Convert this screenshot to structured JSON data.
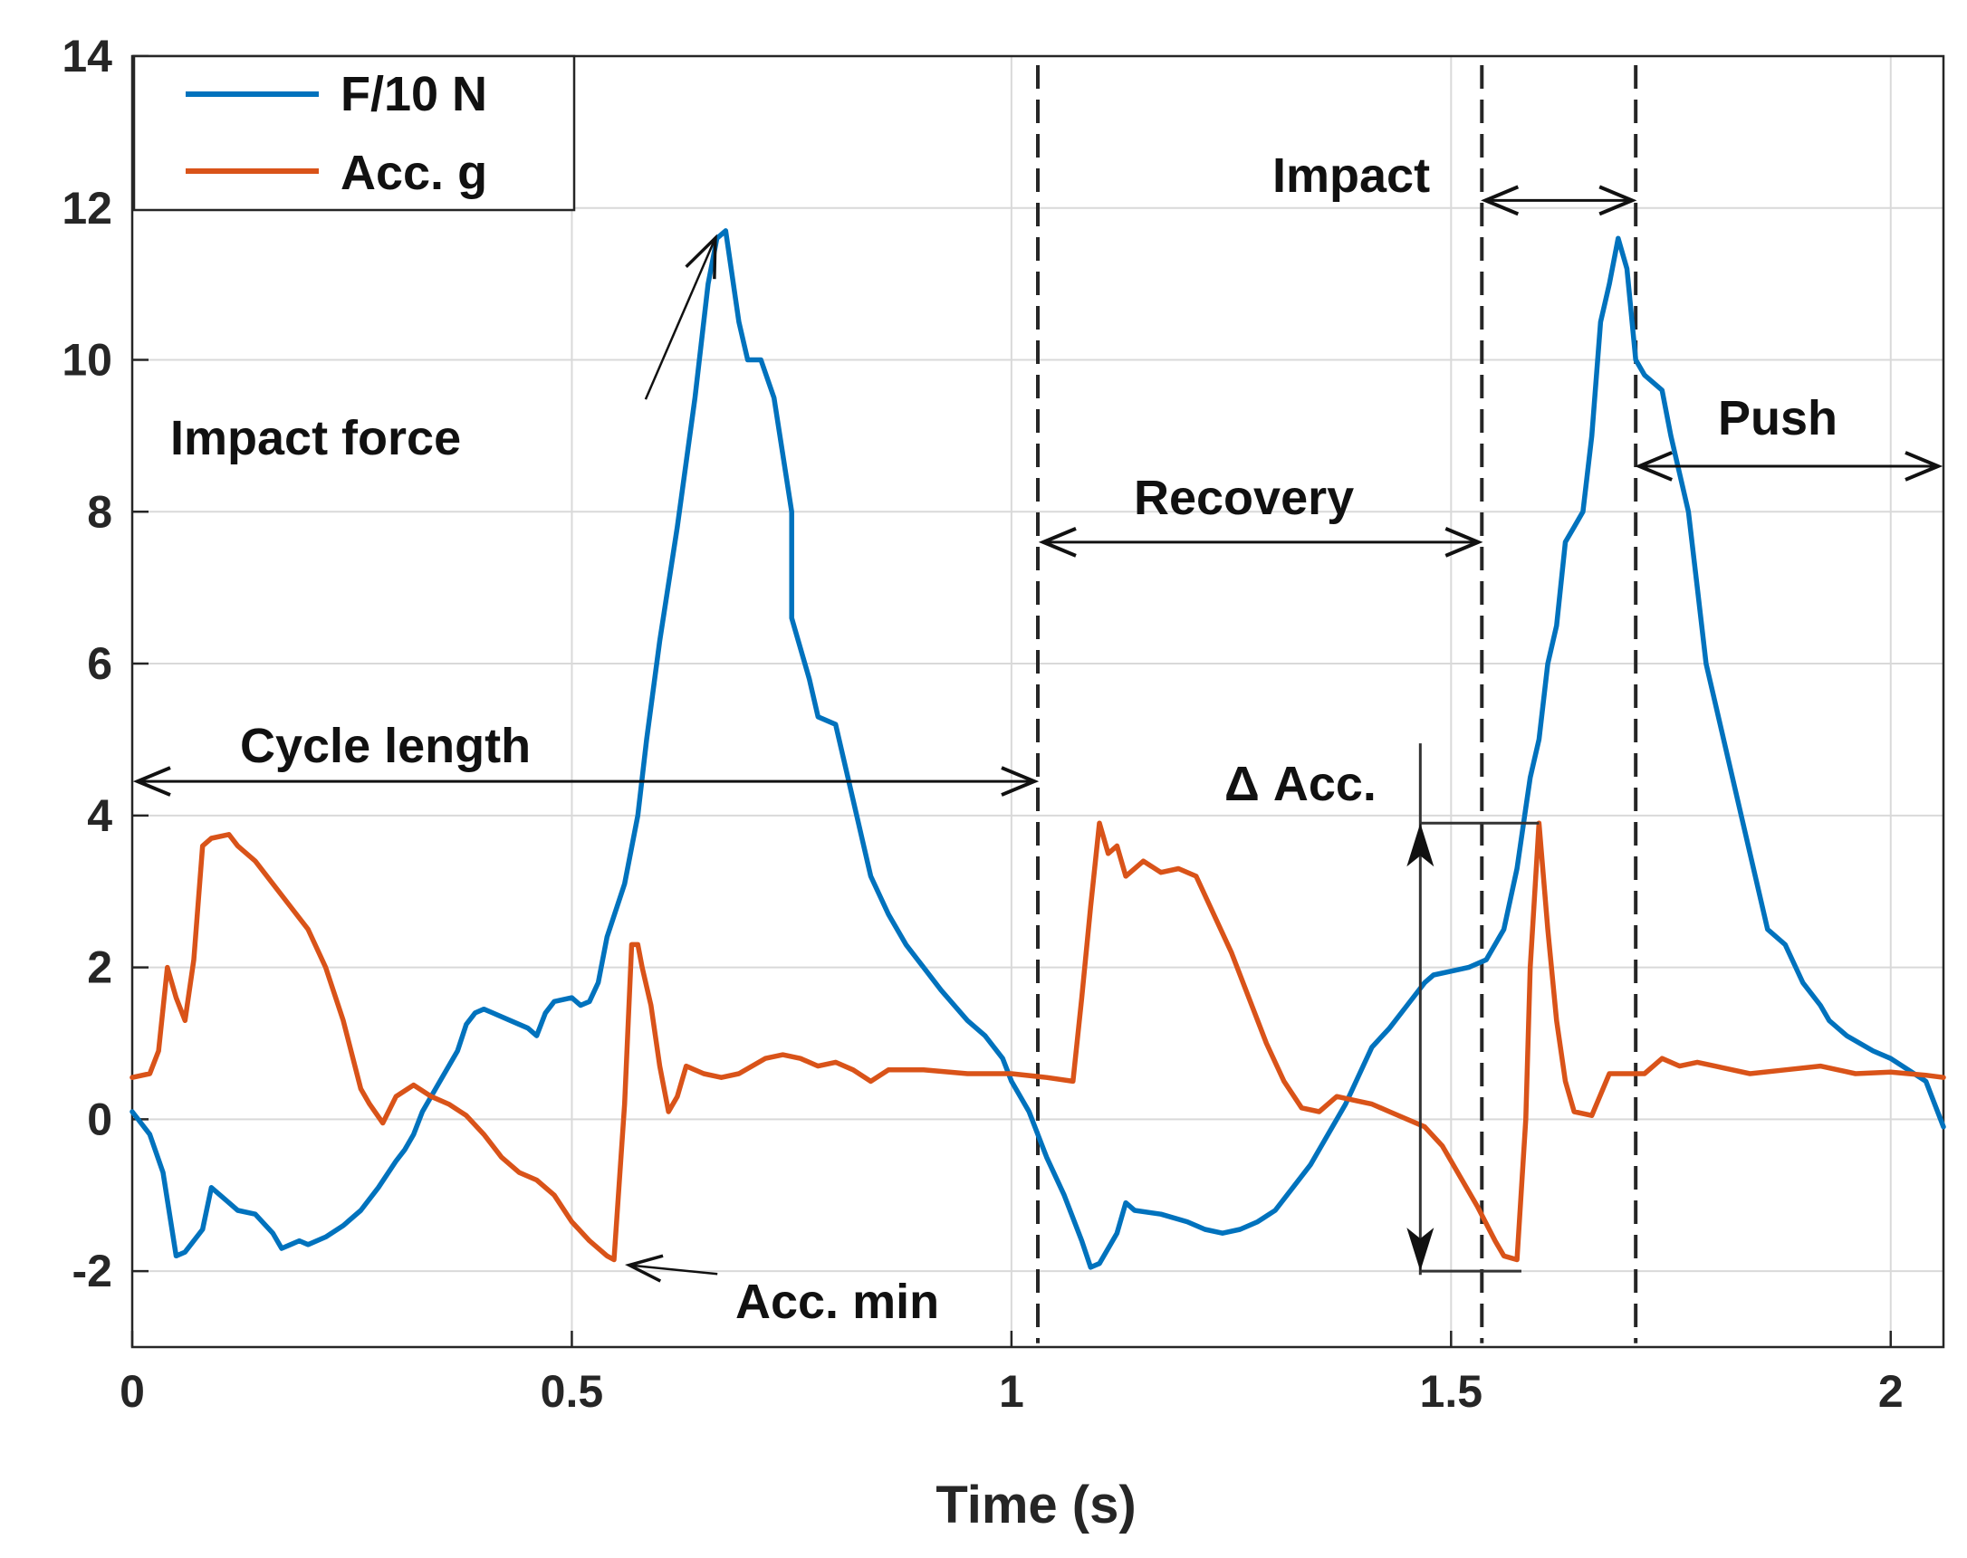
{
  "chart_data": {
    "type": "line",
    "title": "",
    "xlabel": "Time (s)",
    "ylabel": "",
    "xlim": [
      0,
      2.06
    ],
    "ylim": [
      -3,
      14
    ],
    "grid": true,
    "legend_position": "top-left",
    "xticks": [
      0,
      0.5,
      1,
      1.5,
      2
    ],
    "xtick_labels": [
      "0",
      "0.5",
      "1",
      "1.5",
      "2"
    ],
    "yticks": [
      -2,
      0,
      2,
      4,
      6,
      8,
      10,
      12,
      14
    ],
    "ytick_labels": [
      "-2",
      "0",
      "2",
      "4",
      "6",
      "8",
      "10",
      "12",
      "14"
    ],
    "colors": {
      "force": "#0072BD",
      "acc": "#D95319",
      "grid": "#d9d9d9",
      "axis": "#262626"
    },
    "series": [
      {
        "name": "F/10  N",
        "color": "#0072BD",
        "points": [
          [
            0,
            0.1
          ],
          [
            0.02,
            -0.2
          ],
          [
            0.035,
            -0.7
          ],
          [
            0.05,
            -1.8
          ],
          [
            0.06,
            -1.75
          ],
          [
            0.07,
            -1.6
          ],
          [
            0.08,
            -1.45
          ],
          [
            0.09,
            -0.9
          ],
          [
            0.1,
            -1.0
          ],
          [
            0.11,
            -1.1
          ],
          [
            0.12,
            -1.2
          ],
          [
            0.14,
            -1.25
          ],
          [
            0.16,
            -1.5
          ],
          [
            0.17,
            -1.7
          ],
          [
            0.18,
            -1.65
          ],
          [
            0.19,
            -1.6
          ],
          [
            0.2,
            -1.65
          ],
          [
            0.22,
            -1.55
          ],
          [
            0.24,
            -1.4
          ],
          [
            0.26,
            -1.2
          ],
          [
            0.28,
            -0.9
          ],
          [
            0.3,
            -0.55
          ],
          [
            0.31,
            -0.4
          ],
          [
            0.32,
            -0.2
          ],
          [
            0.33,
            0.1
          ],
          [
            0.35,
            0.5
          ],
          [
            0.37,
            0.9
          ],
          [
            0.38,
            1.25
          ],
          [
            0.39,
            1.4
          ],
          [
            0.4,
            1.45
          ],
          [
            0.41,
            1.4
          ],
          [
            0.43,
            1.3
          ],
          [
            0.45,
            1.2
          ],
          [
            0.46,
            1.1
          ],
          [
            0.47,
            1.4
          ],
          [
            0.48,
            1.55
          ],
          [
            0.5,
            1.6
          ],
          [
            0.51,
            1.5
          ],
          [
            0.52,
            1.55
          ],
          [
            0.53,
            1.8
          ],
          [
            0.54,
            2.4
          ],
          [
            0.56,
            3.1
          ],
          [
            0.575,
            4.0
          ],
          [
            0.585,
            5.0
          ],
          [
            0.6,
            6.3
          ],
          [
            0.62,
            7.8
          ],
          [
            0.64,
            9.5
          ],
          [
            0.655,
            11.0
          ],
          [
            0.665,
            11.6
          ],
          [
            0.675,
            11.7
          ],
          [
            0.69,
            10.5
          ],
          [
            0.7,
            10.0
          ],
          [
            0.715,
            10.0
          ],
          [
            0.73,
            9.5
          ],
          [
            0.75,
            8.0
          ],
          [
            0.75,
            6.6
          ],
          [
            0.77,
            5.8
          ],
          [
            0.78,
            5.3
          ],
          [
            0.8,
            5.2
          ],
          [
            0.82,
            4.2
          ],
          [
            0.84,
            3.2
          ],
          [
            0.86,
            2.7
          ],
          [
            0.88,
            2.3
          ],
          [
            0.9,
            2.0
          ],
          [
            0.92,
            1.7
          ],
          [
            0.95,
            1.3
          ],
          [
            0.97,
            1.1
          ],
          [
            0.99,
            0.8
          ],
          [
            1.0,
            0.5
          ],
          [
            1.02,
            0.1
          ],
          [
            1.04,
            -0.5
          ],
          [
            1.06,
            -1.0
          ],
          [
            1.08,
            -1.6
          ],
          [
            1.09,
            -1.95
          ],
          [
            1.1,
            -1.9
          ],
          [
            1.12,
            -1.5
          ],
          [
            1.13,
            -1.1
          ],
          [
            1.14,
            -1.2
          ],
          [
            1.17,
            -1.25
          ],
          [
            1.2,
            -1.35
          ],
          [
            1.22,
            -1.45
          ],
          [
            1.24,
            -1.5
          ],
          [
            1.26,
            -1.45
          ],
          [
            1.28,
            -1.35
          ],
          [
            1.3,
            -1.2
          ],
          [
            1.32,
            -0.9
          ],
          [
            1.34,
            -0.6
          ],
          [
            1.36,
            -0.2
          ],
          [
            1.38,
            0.2
          ],
          [
            1.4,
            0.7
          ],
          [
            1.41,
            0.95
          ],
          [
            1.43,
            1.2
          ],
          [
            1.45,
            1.5
          ],
          [
            1.47,
            1.8
          ],
          [
            1.48,
            1.9
          ],
          [
            1.5,
            1.95
          ],
          [
            1.52,
            2.0
          ],
          [
            1.54,
            2.1
          ],
          [
            1.56,
            2.5
          ],
          [
            1.575,
            3.3
          ],
          [
            1.585,
            4.1
          ],
          [
            1.59,
            4.5
          ],
          [
            1.6,
            5.0
          ],
          [
            1.61,
            6.0
          ],
          [
            1.62,
            6.5
          ],
          [
            1.63,
            7.6
          ],
          [
            1.64,
            7.8
          ],
          [
            1.65,
            8.0
          ],
          [
            1.66,
            9.0
          ],
          [
            1.67,
            10.5
          ],
          [
            1.68,
            11.0
          ],
          [
            1.69,
            11.6
          ],
          [
            1.7,
            11.2
          ],
          [
            1.71,
            10.0
          ],
          [
            1.72,
            9.8
          ],
          [
            1.74,
            9.6
          ],
          [
            1.75,
            9.0
          ],
          [
            1.77,
            8.0
          ],
          [
            1.78,
            7.0
          ],
          [
            1.79,
            6.0
          ],
          [
            1.8,
            5.5
          ],
          [
            1.82,
            4.5
          ],
          [
            1.84,
            3.5
          ],
          [
            1.86,
            2.5
          ],
          [
            1.88,
            2.3
          ],
          [
            1.9,
            1.8
          ],
          [
            1.92,
            1.5
          ],
          [
            1.93,
            1.3
          ],
          [
            1.95,
            1.1
          ],
          [
            1.98,
            0.9
          ],
          [
            2.0,
            0.8
          ],
          [
            2.02,
            0.65
          ],
          [
            2.04,
            0.5
          ],
          [
            2.06,
            -0.1
          ]
        ]
      },
      {
        "name": "Acc.  g",
        "color": "#D95319",
        "points": [
          [
            0,
            0.55
          ],
          [
            0.02,
            0.6
          ],
          [
            0.03,
            0.9
          ],
          [
            0.04,
            2.0
          ],
          [
            0.05,
            1.6
          ],
          [
            0.06,
            1.3
          ],
          [
            0.07,
            2.1
          ],
          [
            0.08,
            3.6
          ],
          [
            0.09,
            3.7
          ],
          [
            0.11,
            3.75
          ],
          [
            0.12,
            3.6
          ],
          [
            0.14,
            3.4
          ],
          [
            0.16,
            3.1
          ],
          [
            0.18,
            2.8
          ],
          [
            0.2,
            2.5
          ],
          [
            0.22,
            2.0
          ],
          [
            0.24,
            1.3
          ],
          [
            0.26,
            0.4
          ],
          [
            0.27,
            0.2
          ],
          [
            0.285,
            -0.05
          ],
          [
            0.3,
            0.3
          ],
          [
            0.32,
            0.45
          ],
          [
            0.34,
            0.3
          ],
          [
            0.36,
            0.2
          ],
          [
            0.38,
            0.05
          ],
          [
            0.4,
            -0.2
          ],
          [
            0.42,
            -0.5
          ],
          [
            0.44,
            -0.7
          ],
          [
            0.46,
            -0.8
          ],
          [
            0.48,
            -1.0
          ],
          [
            0.5,
            -1.35
          ],
          [
            0.52,
            -1.6
          ],
          [
            0.54,
            -1.8
          ],
          [
            0.548,
            -1.85
          ],
          [
            0.56,
            0.2
          ],
          [
            0.568,
            2.3
          ],
          [
            0.575,
            2.3
          ],
          [
            0.58,
            2.0
          ],
          [
            0.59,
            1.5
          ],
          [
            0.6,
            0.7
          ],
          [
            0.61,
            0.1
          ],
          [
            0.62,
            0.3
          ],
          [
            0.63,
            0.7
          ],
          [
            0.65,
            0.6
          ],
          [
            0.67,
            0.55
          ],
          [
            0.69,
            0.6
          ],
          [
            0.72,
            0.8
          ],
          [
            0.74,
            0.85
          ],
          [
            0.76,
            0.8
          ],
          [
            0.78,
            0.7
          ],
          [
            0.8,
            0.75
          ],
          [
            0.82,
            0.65
          ],
          [
            0.84,
            0.5
          ],
          [
            0.86,
            0.65
          ],
          [
            0.9,
            0.65
          ],
          [
            0.95,
            0.6
          ],
          [
            1.0,
            0.6
          ],
          [
            1.04,
            0.55
          ],
          [
            1.07,
            0.5
          ],
          [
            1.08,
            1.6
          ],
          [
            1.09,
            2.8
          ],
          [
            1.1,
            3.9
          ],
          [
            1.11,
            3.5
          ],
          [
            1.12,
            3.6
          ],
          [
            1.13,
            3.2
          ],
          [
            1.15,
            3.4
          ],
          [
            1.17,
            3.25
          ],
          [
            1.19,
            3.3
          ],
          [
            1.21,
            3.2
          ],
          [
            1.23,
            2.7
          ],
          [
            1.25,
            2.2
          ],
          [
            1.27,
            1.6
          ],
          [
            1.29,
            1.0
          ],
          [
            1.31,
            0.5
          ],
          [
            1.33,
            0.15
          ],
          [
            1.35,
            0.1
          ],
          [
            1.37,
            0.3
          ],
          [
            1.39,
            0.25
          ],
          [
            1.41,
            0.2
          ],
          [
            1.43,
            0.1
          ],
          [
            1.45,
            0.0
          ],
          [
            1.47,
            -0.1
          ],
          [
            1.49,
            -0.35
          ],
          [
            1.51,
            -0.75
          ],
          [
            1.53,
            -1.15
          ],
          [
            1.55,
            -1.6
          ],
          [
            1.56,
            -1.8
          ],
          [
            1.575,
            -1.85
          ],
          [
            1.585,
            0.0
          ],
          [
            1.59,
            2.0
          ],
          [
            1.6,
            3.9
          ],
          [
            1.61,
            2.5
          ],
          [
            1.62,
            1.3
          ],
          [
            1.63,
            0.5
          ],
          [
            1.64,
            0.1
          ],
          [
            1.66,
            0.05
          ],
          [
            1.68,
            0.6
          ],
          [
            1.7,
            0.6
          ],
          [
            1.72,
            0.6
          ],
          [
            1.74,
            0.8
          ],
          [
            1.76,
            0.7
          ],
          [
            1.78,
            0.75
          ],
          [
            1.8,
            0.7
          ],
          [
            1.84,
            0.6
          ],
          [
            1.88,
            0.65
          ],
          [
            1.92,
            0.7
          ],
          [
            1.96,
            0.6
          ],
          [
            2.0,
            0.62
          ],
          [
            2.04,
            0.58
          ],
          [
            2.06,
            0.55
          ]
        ]
      }
    ],
    "vlines": [
      1.03,
      1.535,
      1.71
    ],
    "annotations": {
      "impact_force": "Impact force",
      "acc_min": "Acc. min",
      "cycle_length": "Cycle length",
      "recovery": "Recovery",
      "impact": "Impact",
      "push": "Push",
      "delta_acc": "Δ Acc."
    },
    "annotation_points": {
      "impact_force_target": [
        0.655,
        11.7
      ],
      "impact_force_text_anchor": [
        0.45,
        9.6
      ],
      "acc_min_target": [
        0.555,
        -1.85
      ],
      "acc_min_text_anchor": [
        0.68,
        -2.3
      ],
      "cycle_length": {
        "x_start": 0,
        "x_end": 1.03,
        "y": 4.45
      },
      "recovery": {
        "x_start": 1.03,
        "x_end": 1.535,
        "y": 7.6
      },
      "impact": {
        "x_start": 1.535,
        "x_end": 1.71,
        "y": 12.1
      },
      "push": {
        "x_start": 1.71,
        "x_end": 2.06,
        "y": 8.6
      },
      "delta_acc": {
        "x": 1.465,
        "y_bottom": -2.0,
        "y_top": 3.9,
        "ref_line_x_end_top": 1.6,
        "ref_line_x_end_bottom": 1.58
      }
    }
  }
}
